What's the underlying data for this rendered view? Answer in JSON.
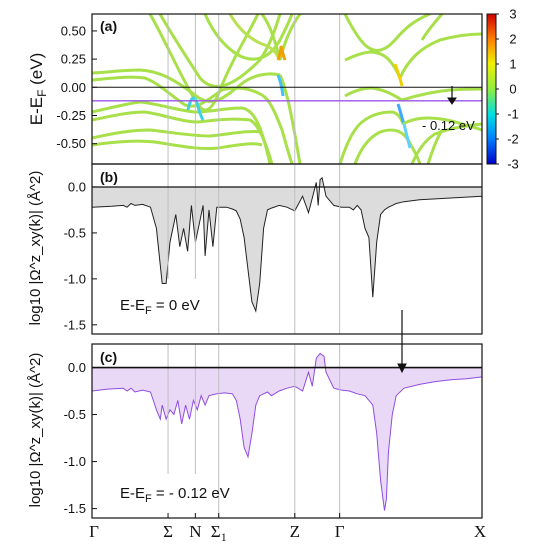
{
  "chart_data": [
    {
      "id": "a",
      "type": "line",
      "panel_label": "(a)",
      "ylabel": "E-E",
      "ylabel_sub": "F",
      "ylabel_unit": " (eV)",
      "ylim": [
        -0.68,
        0.65
      ],
      "yticks": [
        "0.50",
        "0.25",
        "0.00",
        "-0.25",
        "-0.50"
      ],
      "ytick_values": [
        0.5,
        0.25,
        0.0,
        -0.25,
        -0.5
      ],
      "hlines": [
        0.0,
        -0.12
      ],
      "annotation": "- 0.12 eV",
      "colorbar": {
        "min": -3,
        "max": 3,
        "ticks": [
          "3",
          "2",
          "1",
          "0",
          "-1",
          "-2",
          "-3"
        ],
        "tick_values": [
          3,
          2,
          1,
          0,
          -1,
          -2,
          -3
        ]
      }
    },
    {
      "id": "b",
      "type": "area",
      "panel_label": "(b)",
      "ylabel": "log10 |Ω^z_xy(k)| (Å^2)",
      "ylim": [
        -1.6,
        0.25
      ],
      "yticks": [
        "0.0",
        "-0.5",
        "-1.0",
        "-1.5"
      ],
      "ytick_values": [
        0.0,
        -0.5,
        -1.0,
        -1.5
      ],
      "annotation": "E-E",
      "annotation_sub": "F",
      "annotation_value": " = 0 eV",
      "x": [
        0.0,
        0.05,
        0.08,
        0.09,
        0.1,
        0.11,
        0.13,
        0.15,
        0.165,
        0.18,
        0.19,
        0.2,
        0.215,
        0.225,
        0.235,
        0.245,
        0.255,
        0.265,
        0.275,
        0.285,
        0.29,
        0.3,
        0.31,
        0.32,
        0.33,
        0.345,
        0.36,
        0.37,
        0.38,
        0.39,
        0.4,
        0.41,
        0.42,
        0.43,
        0.44,
        0.45,
        0.46,
        0.48,
        0.5,
        0.52,
        0.54,
        0.555,
        0.565,
        0.575,
        0.58,
        0.585,
        0.59,
        0.6,
        0.62,
        0.64,
        0.66,
        0.67,
        0.68,
        0.69,
        0.7,
        0.71,
        0.72,
        0.73,
        0.74,
        0.75,
        0.76,
        0.77,
        0.78,
        0.8,
        0.84,
        0.88,
        0.92,
        0.96,
        1.0
      ],
      "values": [
        -0.22,
        -0.21,
        -0.2,
        -0.22,
        -0.18,
        -0.2,
        -0.19,
        -0.22,
        -0.45,
        -1.05,
        -1.05,
        -0.6,
        -0.3,
        -0.65,
        -0.45,
        -0.7,
        -0.2,
        -0.6,
        -0.4,
        -0.2,
        -0.75,
        -0.25,
        -0.65,
        -0.22,
        -0.22,
        -0.22,
        -0.24,
        -0.26,
        -0.35,
        -0.55,
        -0.9,
        -1.25,
        -1.35,
        -1.05,
        -0.45,
        -0.25,
        -0.23,
        -0.2,
        -0.22,
        -0.26,
        -0.1,
        -0.28,
        -0.12,
        0.05,
        -0.2,
        0.08,
        0.1,
        -0.1,
        -0.2,
        -0.22,
        -0.22,
        -0.25,
        -0.2,
        -0.25,
        -0.45,
        -0.55,
        -1.2,
        -0.6,
        -0.3,
        -0.25,
        -0.22,
        -0.2,
        -0.18,
        -0.16,
        -0.14,
        -0.13,
        -0.12,
        -0.11,
        -0.1
      ]
    },
    {
      "id": "c",
      "type": "area",
      "panel_label": "(c)",
      "ylabel": "log10 |Ω^z_xy(k)| (Å^2)",
      "ylim": [
        -1.6,
        0.25
      ],
      "yticks": [
        "0.0",
        "-0.5",
        "-1.0",
        "-1.5"
      ],
      "ytick_values": [
        0.0,
        -0.5,
        -1.0,
        -1.5
      ],
      "annotation": "E-E",
      "annotation_sub": "F",
      "annotation_value": " = - 0.12 eV",
      "x": [
        0.0,
        0.04,
        0.08,
        0.09,
        0.1,
        0.11,
        0.13,
        0.15,
        0.165,
        0.175,
        0.18,
        0.19,
        0.2,
        0.21,
        0.22,
        0.23,
        0.24,
        0.25,
        0.26,
        0.27,
        0.28,
        0.29,
        0.3,
        0.32,
        0.34,
        0.36,
        0.37,
        0.38,
        0.39,
        0.4,
        0.41,
        0.42,
        0.43,
        0.44,
        0.45,
        0.46,
        0.48,
        0.5,
        0.52,
        0.54,
        0.555,
        0.565,
        0.575,
        0.585,
        0.595,
        0.6,
        0.62,
        0.64,
        0.66,
        0.68,
        0.7,
        0.72,
        0.73,
        0.74,
        0.75,
        0.755,
        0.76,
        0.77,
        0.78,
        0.8,
        0.84,
        0.88,
        0.92,
        0.96,
        1.0
      ],
      "values": [
        -0.25,
        -0.23,
        -0.22,
        -0.25,
        -0.22,
        -0.26,
        -0.24,
        -0.26,
        -0.45,
        -0.55,
        -0.4,
        -0.55,
        -0.45,
        -0.5,
        -0.35,
        -0.6,
        -0.4,
        -0.55,
        -0.35,
        -0.45,
        -0.3,
        -0.4,
        -0.3,
        -0.28,
        -0.27,
        -0.28,
        -0.35,
        -0.55,
        -0.85,
        -0.95,
        -0.7,
        -0.4,
        -0.3,
        -0.28,
        -0.26,
        -0.3,
        -0.25,
        -0.22,
        -0.2,
        -0.25,
        -0.05,
        -0.2,
        0.1,
        0.15,
        0.12,
        -0.05,
        -0.22,
        -0.24,
        -0.25,
        -0.28,
        -0.3,
        -0.4,
        -0.7,
        -1.2,
        -1.52,
        -1.4,
        -0.9,
        -0.5,
        -0.3,
        -0.22,
        -0.18,
        -0.15,
        -0.13,
        -0.12,
        -0.1
      ]
    }
  ],
  "kpoints": {
    "labels": [
      "Γ",
      "Σ",
      "N",
      "Σ",
      "Z",
      "Γ",
      "X"
    ],
    "subs": [
      "",
      "",
      "",
      "1",
      "",
      "",
      ""
    ],
    "positions": [
      0.0,
      0.195,
      0.265,
      0.325,
      0.52,
      0.635,
      1.0
    ]
  },
  "colors": {
    "fill_b": "#dcdcdc",
    "line_b": "#222222",
    "fill_c": "#ead9f6",
    "line_c": "#8f4de0",
    "hline_c": "#9a55e8",
    "vline": "#bfbfbf"
  }
}
